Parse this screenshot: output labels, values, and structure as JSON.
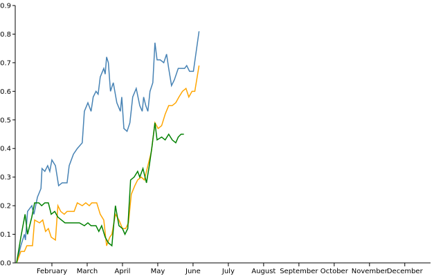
{
  "chart_data": {
    "type": "line",
    "xlim": [
      0,
      11.73
    ],
    "xticks": [
      {
        "value": 1,
        "label": "February"
      },
      {
        "value": 2,
        "label": "March"
      },
      {
        "value": 3,
        "label": "April"
      },
      {
        "value": 4,
        "label": "May"
      },
      {
        "value": 5,
        "label": "June"
      },
      {
        "value": 6,
        "label": "July"
      },
      {
        "value": 7,
        "label": "August"
      },
      {
        "value": 8,
        "label": "September"
      },
      {
        "value": 9,
        "label": "October"
      },
      {
        "value": 10,
        "label": "November"
      },
      {
        "value": 11,
        "label": "December"
      }
    ],
    "ylim": [
      0,
      0.9
    ],
    "yticks": [
      {
        "value": 0,
        "label": "0.0"
      },
      0.1,
      0.2,
      0.3,
      0.4,
      0.5,
      0.6,
      0.7,
      0.8,
      0.9
    ],
    "series": [
      {
        "color": "#4682b4",
        "x": [
          0,
          0.12,
          0.22,
          0.25,
          0.31,
          0.43,
          0.49,
          0.59,
          0.69,
          0.72,
          0.8,
          0.88,
          0.94,
          1.0,
          1.1,
          1.19,
          1.29,
          1.43,
          1.49,
          1.61,
          1.72,
          1.86,
          1.92,
          2.02,
          2.11,
          2.17,
          2.25,
          2.31,
          2.37,
          2.47,
          2.51,
          2.55,
          2.6,
          2.66,
          2.74,
          2.84,
          2.94,
          2.98,
          3.04,
          3.13,
          3.21,
          3.29,
          3.39,
          3.49,
          3.56,
          3.6,
          3.66,
          3.72,
          3.78,
          3.86,
          3.92,
          3.98,
          4.07,
          4.17,
          4.25,
          4.31,
          4.39,
          4.47,
          4.58,
          4.76,
          4.82,
          4.9,
          5.01,
          5.17
        ],
        "values": [
          0,
          0.06,
          0.1,
          0.08,
          0.18,
          0.2,
          0.17,
          0.23,
          0.26,
          0.33,
          0.32,
          0.34,
          0.32,
          0.36,
          0.34,
          0.27,
          0.28,
          0.28,
          0.34,
          0.38,
          0.4,
          0.42,
          0.53,
          0.56,
          0.53,
          0.58,
          0.6,
          0.59,
          0.65,
          0.68,
          0.66,
          0.72,
          0.7,
          0.6,
          0.63,
          0.56,
          0.53,
          0.58,
          0.47,
          0.46,
          0.49,
          0.58,
          0.61,
          0.55,
          0.53,
          0.58,
          0.55,
          0.53,
          0.6,
          0.63,
          0.77,
          0.71,
          0.71,
          0.7,
          0.73,
          0.68,
          0.62,
          0.64,
          0.68,
          0.68,
          0.69,
          0.67,
          0.67,
          0.81
        ]
      },
      {
        "color": "#ffa500",
        "x": [
          0,
          0.12,
          0.22,
          0.29,
          0.45,
          0.51,
          0.65,
          0.74,
          0.82,
          0.9,
          0.98,
          1.1,
          1.17,
          1.25,
          1.35,
          1.43,
          1.53,
          1.63,
          1.72,
          1.86,
          1.96,
          2.06,
          2.13,
          2.19,
          2.27,
          2.37,
          2.47,
          2.55,
          2.64,
          2.7,
          2.8,
          2.9,
          3.0,
          3.09,
          3.17,
          3.25,
          3.35,
          3.43,
          3.53,
          3.62,
          3.72,
          3.82,
          3.92,
          4.01,
          4.11,
          4.21,
          4.31,
          4.41,
          4.51,
          4.6,
          4.7,
          4.8,
          4.88,
          4.97,
          5.05,
          5.17
        ],
        "values": [
          0,
          0.04,
          0.04,
          0.06,
          0.06,
          0.15,
          0.14,
          0.15,
          0.11,
          0.12,
          0.09,
          0.08,
          0.2,
          0.18,
          0.17,
          0.18,
          0.18,
          0.18,
          0.21,
          0.2,
          0.21,
          0.2,
          0.21,
          0.21,
          0.21,
          0.17,
          0.15,
          0.06,
          0.09,
          0.1,
          0.17,
          0.15,
          0.12,
          0.12,
          0.14,
          0.24,
          0.27,
          0.29,
          0.3,
          0.29,
          0.34,
          0.39,
          0.49,
          0.47,
          0.48,
          0.52,
          0.55,
          0.55,
          0.56,
          0.58,
          0.6,
          0.61,
          0.58,
          0.6,
          0.6,
          0.69
        ]
      },
      {
        "color": "#008000",
        "x": [
          0,
          0.12,
          0.24,
          0.31,
          0.43,
          0.51,
          0.63,
          0.71,
          0.8,
          0.9,
          0.98,
          1.08,
          1.17,
          1.27,
          1.37,
          1.53,
          1.63,
          1.78,
          1.92,
          2.02,
          2.11,
          2.25,
          2.33,
          2.41,
          2.51,
          2.6,
          2.7,
          2.8,
          2.9,
          3.0,
          3.07,
          3.15,
          3.23,
          3.33,
          3.43,
          3.49,
          3.58,
          3.68,
          3.76,
          3.84,
          3.92,
          3.98,
          4.11,
          4.21,
          4.31,
          4.41,
          4.51,
          4.58,
          4.66,
          4.74
        ],
        "values": [
          0,
          0.09,
          0.17,
          0.1,
          0.16,
          0.21,
          0.21,
          0.2,
          0.21,
          0.21,
          0.17,
          0.18,
          0.16,
          0.15,
          0.14,
          0.14,
          0.14,
          0.14,
          0.13,
          0.14,
          0.13,
          0.13,
          0.11,
          0.13,
          0.09,
          0.07,
          0.06,
          0.2,
          0.13,
          0.12,
          0.1,
          0.12,
          0.29,
          0.3,
          0.32,
          0.3,
          0.33,
          0.28,
          0.34,
          0.41,
          0.49,
          0.43,
          0.44,
          0.43,
          0.45,
          0.43,
          0.42,
          0.44,
          0.45,
          0.45
        ]
      }
    ]
  }
}
